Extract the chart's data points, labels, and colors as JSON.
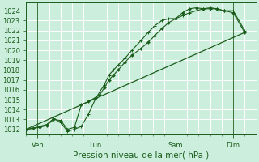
{
  "xlabel": "Pression niveau de la mer( hPa )",
  "bg_color": "#cceedd",
  "grid_color": "#aaddcc",
  "line_color": "#1a5c1a",
  "ylim": [
    1011.5,
    1024.8
  ],
  "yticks": [
    1012,
    1013,
    1014,
    1015,
    1016,
    1017,
    1018,
    1019,
    1020,
    1021,
    1022,
    1023,
    1024
  ],
  "xlim": [
    0,
    10.0
  ],
  "day_labels": [
    "Ven",
    "Lun",
    "Sam",
    "Dim"
  ],
  "day_positions": [
    0.5,
    3.0,
    6.5,
    9.0
  ],
  "vline_positions": [
    0.5,
    3.0,
    6.5,
    9.0
  ],
  "series1_x": [
    0.0,
    0.3,
    0.6,
    0.9,
    1.2,
    1.5,
    1.8,
    2.1,
    2.4,
    2.7,
    3.0,
    3.2,
    3.4,
    3.6,
    3.8,
    4.0,
    4.3,
    4.6,
    5.0,
    5.3,
    5.6,
    5.9,
    6.2,
    6.5,
    6.8,
    7.1,
    7.4,
    7.7,
    8.0,
    8.3,
    8.6,
    9.0,
    9.5
  ],
  "series1_y": [
    1012.0,
    1012.1,
    1012.2,
    1012.4,
    1013.0,
    1012.9,
    1012.0,
    1012.2,
    1014.5,
    1014.8,
    1015.2,
    1015.5,
    1016.2,
    1017.0,
    1017.5,
    1018.0,
    1018.8,
    1019.5,
    1020.2,
    1020.8,
    1021.5,
    1022.2,
    1022.8,
    1023.2,
    1023.8,
    1024.2,
    1024.3,
    1024.2,
    1024.3,
    1024.2,
    1024.0,
    1023.8,
    1021.8
  ],
  "series2_x": [
    0.0,
    0.3,
    0.6,
    0.9,
    1.2,
    1.5,
    1.8,
    2.1,
    2.4,
    2.7,
    3.0,
    3.2,
    3.4,
    3.6,
    3.8,
    4.0,
    4.3,
    4.6,
    5.0,
    5.3,
    5.6,
    5.9,
    6.2,
    6.5,
    6.8,
    7.1,
    7.4,
    7.7,
    8.0,
    8.3,
    8.6,
    9.0,
    9.5
  ],
  "series2_y": [
    1012.0,
    1012.1,
    1012.3,
    1012.5,
    1013.1,
    1012.7,
    1011.8,
    1012.0,
    1012.3,
    1013.5,
    1015.0,
    1015.8,
    1016.5,
    1017.5,
    1018.0,
    1018.5,
    1019.2,
    1020.0,
    1021.0,
    1021.8,
    1022.5,
    1023.0,
    1023.2,
    1023.2,
    1023.5,
    1023.8,
    1024.0,
    1024.2,
    1024.2,
    1024.2,
    1024.0,
    1024.0,
    1022.0
  ],
  "series3_x": [
    0.0,
    9.5
  ],
  "series3_y": [
    1012.0,
    1021.8
  ],
  "tick_label_fontsize": 6.0,
  "xlabel_fontsize": 7.5
}
